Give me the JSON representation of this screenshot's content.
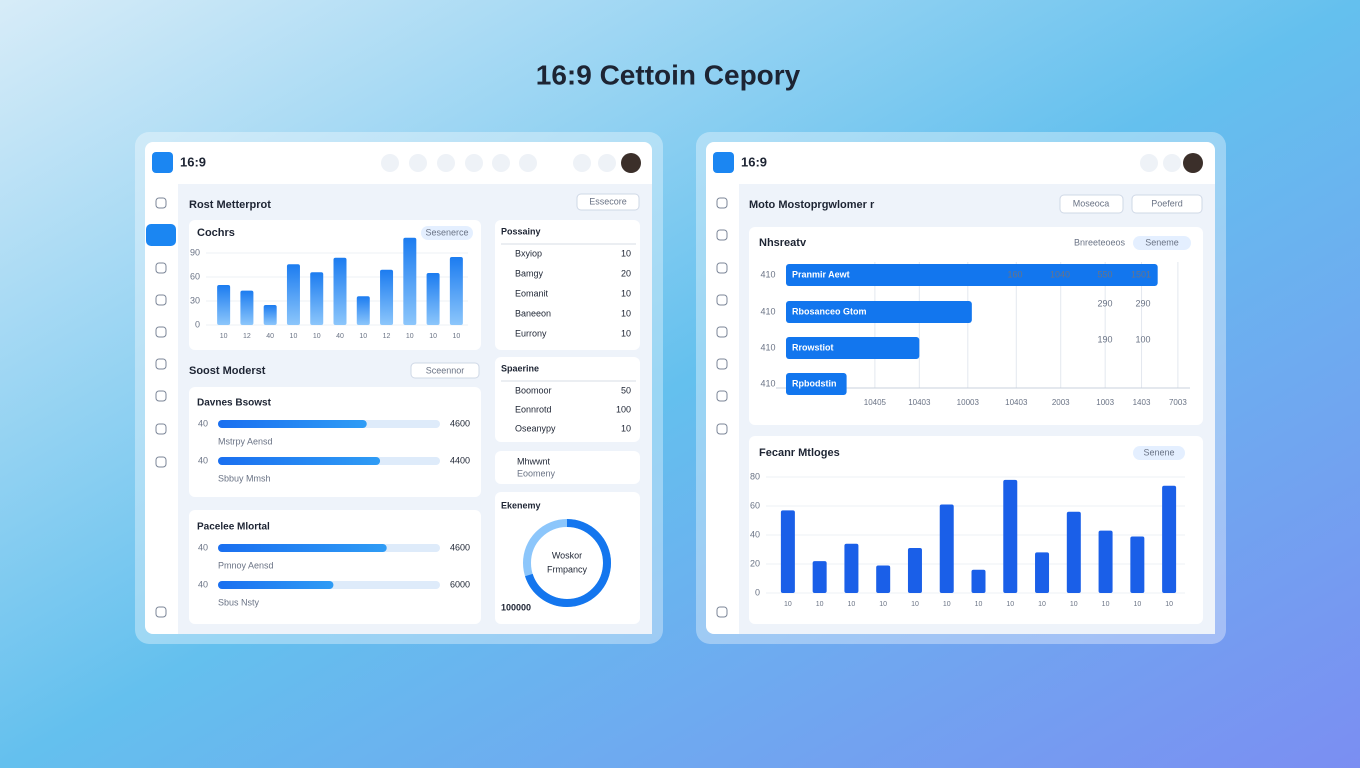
{
  "title": "16:9 Cettoin Cepory",
  "left": {
    "logo": "16:9",
    "section1": "Rost Metterprot",
    "button1": "Essecore",
    "bar_chart": {
      "type": "bar",
      "title": "Cochrs",
      "badge": "Sesenerce",
      "categories": [
        "10",
        "12",
        "40",
        "10",
        "10",
        "40",
        "10",
        "12",
        "10",
        "10",
        "10"
      ],
      "values": [
        50,
        43,
        25,
        76,
        66,
        84,
        36,
        69,
        109,
        65,
        85
      ],
      "ylim": [
        0,
        110
      ],
      "yticks": [
        0,
        30,
        60,
        90
      ],
      "color": "#2f86f0"
    },
    "list1": {
      "title": "Possainy",
      "rows": [
        [
          "Bxyiop",
          "10"
        ],
        [
          "Bamgy",
          "20"
        ],
        [
          "Eomanit",
          "10"
        ],
        [
          "Baneeon",
          "10"
        ],
        [
          "Eurrony",
          "10"
        ]
      ]
    },
    "section2": "Soost Moderst",
    "button2": "Sceennor",
    "progress1": {
      "title": "Davnes Bsowst",
      "items": [
        {
          "tick": "40",
          "label": "Mstrpy Aensd",
          "value": 67,
          "amount": "4600"
        },
        {
          "tick": "40",
          "label": "Sbbuy Mmsh",
          "value": 73,
          "amount": "4400"
        }
      ]
    },
    "list2": {
      "title": "Spaerine",
      "rows": [
        [
          "Boomoor",
          "50"
        ],
        [
          "Eonnrotd",
          "100"
        ],
        [
          "Oseanypy",
          "10"
        ]
      ]
    },
    "mini": {
      "title": "Mhwwnt",
      "subtitle": "Eoomeny"
    },
    "progress2": {
      "title": "Pacelee Mlortal",
      "items": [
        {
          "tick": "40",
          "label": "Pmnoy Aensd",
          "value": 76,
          "amount": "4600"
        },
        {
          "tick": "40",
          "label": "Sbus Nsty",
          "value": 52,
          "amount": "6000"
        }
      ]
    },
    "donut": {
      "type": "donut",
      "title": "Ekenemy",
      "value": 70,
      "center": [
        "Woskor",
        "Frmpancy"
      ],
      "total": "100000"
    }
  },
  "right": {
    "logo": "16:9",
    "section": "Moto Mostoprgwlomer r",
    "buttons": [
      "Moseoca",
      "Poeferd"
    ],
    "hbar_chart": {
      "type": "hbar",
      "title": "Nhsreatv",
      "note": "Bnreeteoeos",
      "badge": "Seneme",
      "categories": [
        "410",
        "410",
        "410",
        "410"
      ],
      "bar_labels": [
        "Pranmir Aewt",
        "Rbosanceo Gtom",
        "Rrowstiot",
        "Rpbodstin"
      ],
      "values": [
        92,
        46,
        33,
        15
      ],
      "color": "#1276ee",
      "xlim": [
        0,
        100
      ],
      "xticks": [
        {
          "value": 22,
          "label": "10405"
        },
        {
          "value": 33,
          "label": "10403"
        },
        {
          "value": 45,
          "label": "10003"
        },
        {
          "value": 57,
          "label": "10403"
        },
        {
          "value": 68,
          "label": "2003"
        },
        {
          "value": 79,
          "label": "1003"
        },
        {
          "value": 88,
          "label": "1403"
        },
        {
          "value": 97,
          "label": "7003"
        }
      ],
      "row_notes": [
        [
          "160",
          "1040",
          "550",
          "1501"
        ],
        [
          "290",
          "290"
        ],
        [
          "190",
          "100"
        ]
      ]
    },
    "bar_chart": {
      "type": "bar",
      "title": "Fecanr Mtloges",
      "badge": "Senene",
      "categories": [
        "10",
        "10",
        "10",
        "10",
        "10",
        "10",
        "10",
        "10",
        "10",
        "10",
        "10",
        "10",
        "10"
      ],
      "values": [
        57,
        22,
        34,
        19,
        31,
        61,
        16,
        78,
        28,
        56,
        43,
        39,
        74
      ],
      "ylim": [
        0,
        80
      ],
      "yticks": [
        0,
        20,
        40,
        60,
        80
      ],
      "color": "#1a5fe8"
    }
  }
}
